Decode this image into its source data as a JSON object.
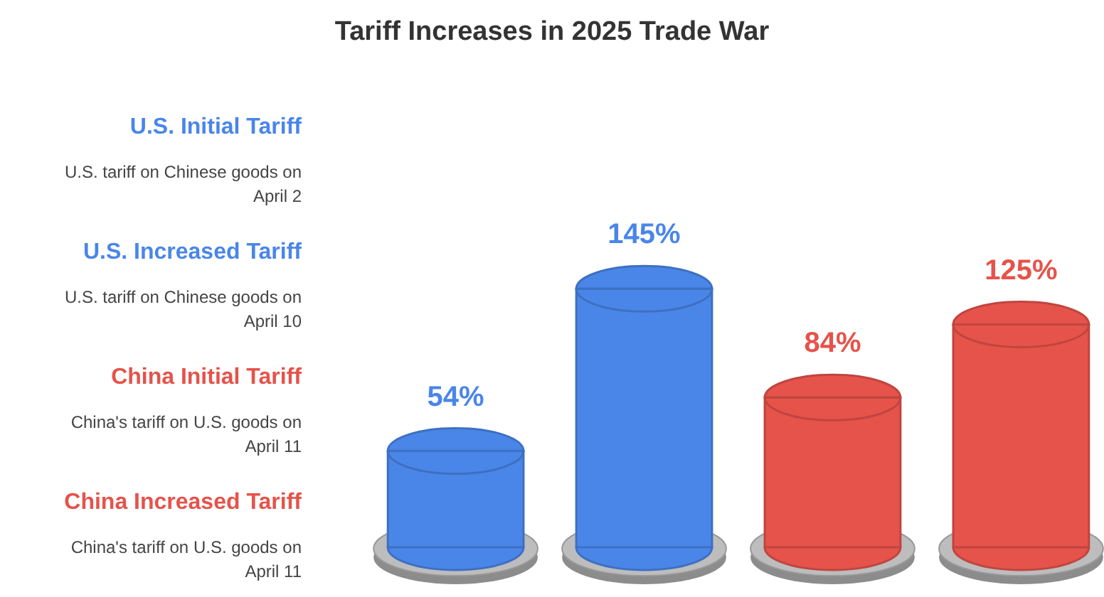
{
  "chart_data": {
    "type": "bar",
    "title": "Tariff Increases in 2025 Trade War",
    "categories": [
      null,
      null,
      null,
      null
    ],
    "values": [
      54,
      145,
      84,
      125
    ],
    "value_labels": [
      "54%",
      "145%",
      "84%",
      "125%"
    ],
    "colors": [
      "#4a86e8",
      "#4a86e8",
      "#e5534b",
      "#e5534b"
    ],
    "annotations": [
      "U.S. Initial Tariff",
      "U.S. tariff on Chinese goods on April 2",
      "U.S. Increased Tariff",
      "U.S. tariff on Chinese goods on April 10",
      "China Initial Tariff",
      "China's tariff on U.S. goods on April 11",
      "China Increased Tariff",
      "China's tariff on U.S. goods on April 11"
    ]
  }
}
